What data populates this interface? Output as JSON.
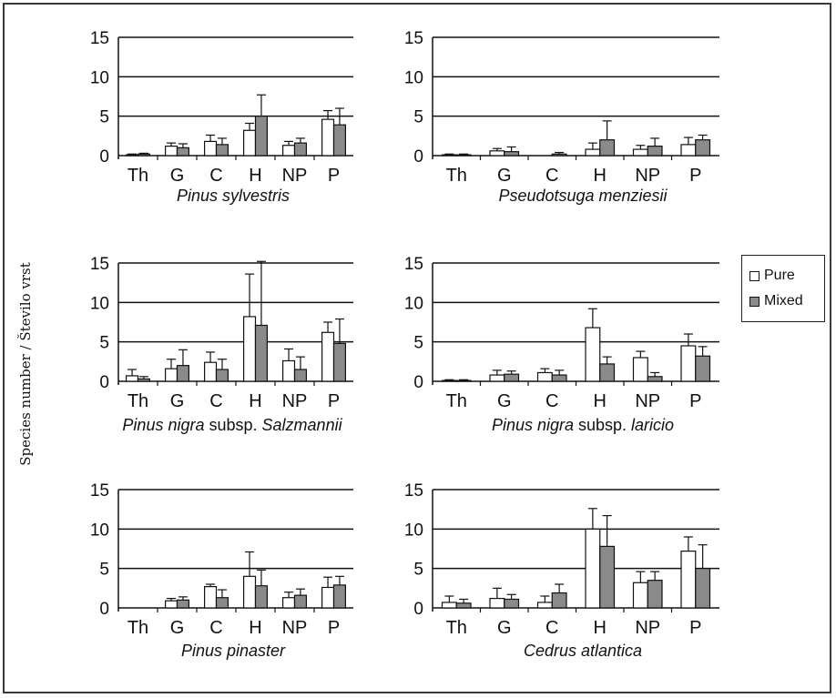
{
  "ylabel": "Species number / Število vrst",
  "legend": [
    {
      "name": "Pure",
      "color": "#ffffff"
    },
    {
      "name": "Mixed",
      "color": "#8a8a8a"
    }
  ],
  "chart_data": [
    {
      "type": "bar",
      "title": "Pinus sylvestris",
      "categories": [
        "Th",
        "G",
        "C",
        "H",
        "NP",
        "P"
      ],
      "ylim": [
        0,
        15
      ],
      "yticks": [
        0,
        5,
        10,
        15
      ],
      "series": [
        {
          "name": "Pure",
          "values": [
            0.1,
            1.2,
            1.8,
            3.2,
            1.3,
            4.6
          ],
          "errors": [
            0.1,
            0.4,
            0.8,
            0.9,
            0.5,
            1.1
          ]
        },
        {
          "name": "Mixed",
          "values": [
            0.2,
            1.0,
            1.4,
            5.0,
            1.6,
            3.9
          ],
          "errors": [
            0.1,
            0.5,
            0.8,
            2.7,
            0.6,
            2.1
          ]
        }
      ]
    },
    {
      "type": "bar",
      "title": "Pseudotsuga menziesii",
      "categories": [
        "Th",
        "G",
        "C",
        "H",
        "NP",
        "P"
      ],
      "ylim": [
        0,
        15
      ],
      "yticks": [
        0,
        5,
        10,
        15
      ],
      "series": [
        {
          "name": "Pure",
          "values": [
            0.1,
            0.6,
            0.0,
            0.8,
            0.8,
            1.4
          ],
          "errors": [
            0.1,
            0.3,
            0.0,
            0.8,
            0.5,
            0.9
          ]
        },
        {
          "name": "Mixed",
          "values": [
            0.1,
            0.5,
            0.2,
            2.0,
            1.2,
            2.0
          ],
          "errors": [
            0.1,
            0.6,
            0.2,
            2.4,
            1.0,
            0.6
          ]
        }
      ]
    },
    {
      "type": "bar",
      "title": "Pinus nigra subsp. Salzmannii",
      "categories": [
        "Th",
        "G",
        "C",
        "H",
        "NP",
        "P"
      ],
      "ylim": [
        0,
        15
      ],
      "yticks": [
        0,
        5,
        10,
        15
      ],
      "series": [
        {
          "name": "Pure",
          "values": [
            0.7,
            1.6,
            2.4,
            8.2,
            2.6,
            6.2
          ],
          "errors": [
            0.8,
            1.2,
            1.3,
            5.4,
            1.5,
            1.3
          ]
        },
        {
          "name": "Mixed",
          "values": [
            0.3,
            2.0,
            1.5,
            7.1,
            1.5,
            4.8
          ],
          "errors": [
            0.3,
            2.0,
            1.3,
            8.1,
            1.6,
            3.1
          ]
        }
      ]
    },
    {
      "type": "bar",
      "title": "Pinus nigra subsp. laricio",
      "categories": [
        "Th",
        "G",
        "C",
        "H",
        "NP",
        "P"
      ],
      "ylim": [
        0,
        15
      ],
      "yticks": [
        0,
        5,
        10,
        15
      ],
      "series": [
        {
          "name": "Pure",
          "values": [
            0.1,
            0.8,
            1.1,
            6.8,
            3.0,
            4.5
          ],
          "errors": [
            0.1,
            0.6,
            0.5,
            2.4,
            0.8,
            1.5
          ]
        },
        {
          "name": "Mixed",
          "values": [
            0.1,
            0.9,
            0.8,
            2.2,
            0.6,
            3.2
          ],
          "errors": [
            0.1,
            0.4,
            0.6,
            0.9,
            0.5,
            1.2
          ]
        }
      ]
    },
    {
      "type": "bar",
      "title": "Pinus pinaster",
      "categories": [
        "Th",
        "G",
        "C",
        "H",
        "NP",
        "P"
      ],
      "ylim": [
        0,
        15
      ],
      "yticks": [
        0,
        5,
        10,
        15
      ],
      "series": [
        {
          "name": "Pure",
          "values": [
            0.0,
            0.9,
            2.7,
            4.0,
            1.3,
            2.6
          ],
          "errors": [
            0.0,
            0.3,
            0.3,
            3.1,
            0.7,
            1.3
          ]
        },
        {
          "name": "Mixed",
          "values": [
            0.0,
            1.0,
            1.3,
            2.8,
            1.6,
            2.9
          ],
          "errors": [
            0.0,
            0.4,
            1.0,
            2.0,
            0.8,
            1.1
          ]
        }
      ]
    },
    {
      "type": "bar",
      "title": "Cedrus atlantica",
      "categories": [
        "Th",
        "G",
        "C",
        "H",
        "NP",
        "P"
      ],
      "ylim": [
        0,
        15
      ],
      "yticks": [
        0,
        5,
        10,
        15
      ],
      "series": [
        {
          "name": "Pure",
          "values": [
            0.7,
            1.2,
            0.7,
            10.0,
            3.2,
            7.2
          ],
          "errors": [
            0.8,
            1.3,
            0.8,
            2.6,
            1.4,
            1.8
          ]
        },
        {
          "name": "Mixed",
          "values": [
            0.6,
            1.1,
            1.9,
            7.8,
            3.5,
            5.0
          ],
          "errors": [
            0.5,
            0.6,
            1.1,
            3.9,
            1.1,
            3.0
          ]
        }
      ]
    }
  ]
}
